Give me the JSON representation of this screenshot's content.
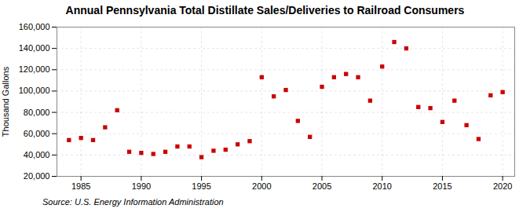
{
  "chart_data": {
    "type": "scatter",
    "title": "Annual Pennsylvania Total Distillate Sales/Deliveries to Railroad Consumers",
    "ylabel": "Thousand Gallons",
    "source": "Source: U.S. Energy Information Administration",
    "color": "#cc0000",
    "marker": "square",
    "x": [
      1984,
      1985,
      1986,
      1987,
      1988,
      1989,
      1990,
      1991,
      1992,
      1993,
      1994,
      1995,
      1996,
      1997,
      1998,
      1999,
      2000,
      2001,
      2002,
      2003,
      2004,
      2005,
      2006,
      2007,
      2008,
      2009,
      2010,
      2011,
      2012,
      2013,
      2014,
      2015,
      2016,
      2017,
      2018,
      2019,
      2020
    ],
    "values": [
      54000,
      56000,
      54000,
      66000,
      82000,
      43000,
      42000,
      41000,
      43000,
      48000,
      48000,
      38000,
      44000,
      45000,
      50000,
      53000,
      113000,
      95000,
      101000,
      72000,
      57000,
      104000,
      113000,
      116000,
      113000,
      91000,
      123000,
      146000,
      140000,
      85000,
      84000,
      71000,
      91000,
      68000,
      55000,
      96000,
      99000
    ],
    "xlim": [
      1983,
      2021
    ],
    "xticks": [
      1985,
      1990,
      1995,
      2000,
      2005,
      2010,
      2015,
      2020
    ],
    "ylim": [
      20000,
      160000
    ],
    "yticks": [
      {
        "value": 20000,
        "label": "20,000"
      },
      {
        "value": 40000,
        "label": "40,000"
      },
      {
        "value": 60000,
        "label": "60,000"
      },
      {
        "value": 80000,
        "label": "80,000"
      },
      {
        "value": 100000,
        "label": "100,000"
      },
      {
        "value": 120000,
        "label": "120,000"
      },
      {
        "value": 140000,
        "label": "140,000"
      },
      {
        "value": 160000,
        "label": "160,000"
      }
    ],
    "grid": true
  }
}
